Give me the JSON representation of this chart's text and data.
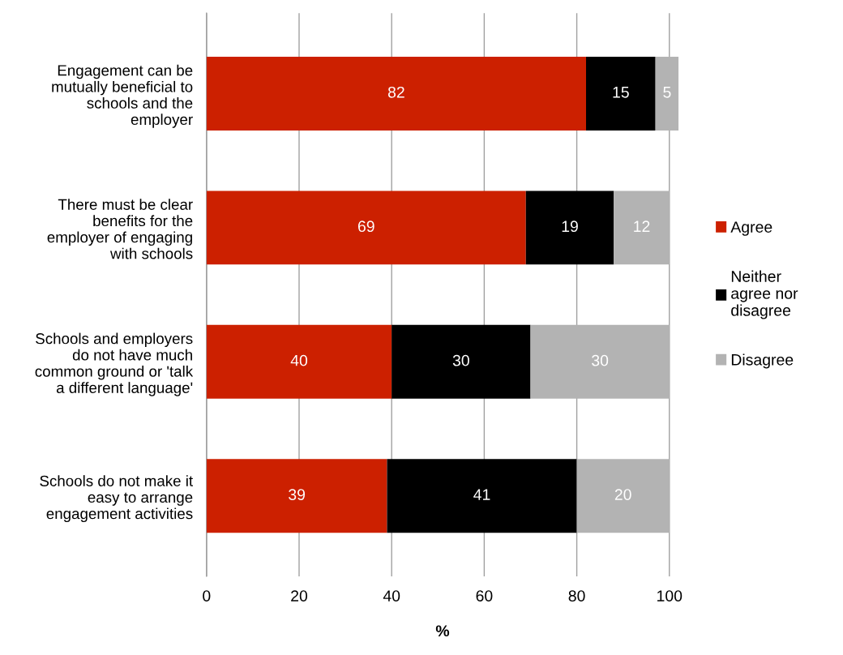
{
  "chart_data": {
    "type": "bar",
    "orientation": "horizontal",
    "stacked": true,
    "categories": [
      "Engagement can be mutually beneficial to schools and the employer",
      "There must be clear benefits for the employer of engaging with schools",
      "Schools and employers do not have much common ground or 'talk a different language'",
      "Schools do not make it easy to arrange engagement activities"
    ],
    "series": [
      {
        "name": "Agree",
        "color": "#cc2000",
        "values": [
          82,
          69,
          40,
          39
        ]
      },
      {
        "name": "Neither agree nor disagree",
        "color": "#000000",
        "values": [
          15,
          19,
          30,
          41
        ]
      },
      {
        "name": "Disagree",
        "color": "#b3b3b3",
        "values": [
          5,
          12,
          30,
          20
        ]
      }
    ],
    "xlabel": "%",
    "xlim": [
      0,
      102
    ],
    "xticks": [
      0,
      20,
      40,
      60,
      80,
      100
    ],
    "grid": "x",
    "legend": "right",
    "data_labels": true
  }
}
